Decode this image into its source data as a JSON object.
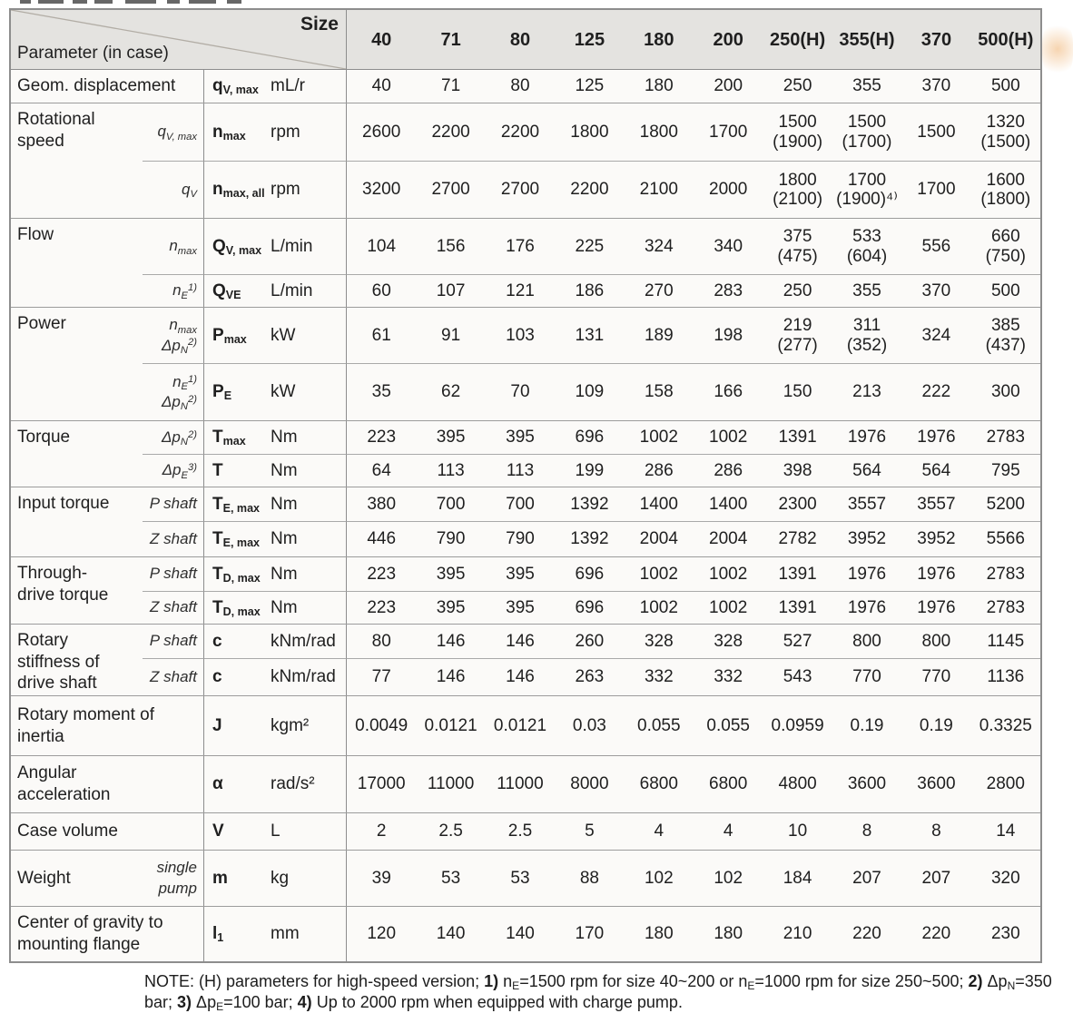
{
  "header": {
    "size_label": "Size",
    "parameter_label": "Parameter (in case)",
    "sizes": [
      "40",
      "71",
      "80",
      "125",
      "180",
      "200",
      "250(H)",
      "355(H)",
      "370",
      "500(H)"
    ]
  },
  "groups": [
    {
      "param_lines": [
        "Geom. displacement"
      ],
      "rows": [
        {
          "cond_lines": [],
          "symbol": [
            {
              "t": "q"
            },
            {
              "t": "V, max",
              "sub": true
            }
          ],
          "unit": "mL/r",
          "values": [
            "40",
            "71",
            "80",
            "125",
            "180",
            "200",
            "250",
            "355",
            "370",
            "500"
          ]
        }
      ]
    },
    {
      "param_lines": [
        "Rotational",
        "speed"
      ],
      "rows": [
        {
          "cond_lines": [
            [
              {
                "t": "q"
              },
              {
                "t": "V, max",
                "sub": true
              }
            ]
          ],
          "symbol": [
            {
              "t": "n"
            },
            {
              "t": "max",
              "sub": true
            }
          ],
          "unit": "rpm",
          "values": [
            "2600",
            "2200",
            "2200",
            "1800",
            "1800",
            "1700",
            "1500\n(1900)",
            "1500\n(1700)",
            "1500",
            "1320\n(1500)"
          ]
        },
        {
          "cond_lines": [
            [
              {
                "t": "q"
              },
              {
                "t": "V",
                "sub": true
              }
            ]
          ],
          "symbol": [
            {
              "t": "n"
            },
            {
              "t": "max, all",
              "sub": true
            }
          ],
          "unit": "rpm",
          "values": [
            "3200",
            "2700",
            "2700",
            "2200",
            "2100",
            "2000",
            "1800\n(2100)",
            "1700\n(1900)⁴⁾",
            "1700",
            "1600\n(1800)"
          ]
        }
      ]
    },
    {
      "param_lines": [
        "Flow"
      ],
      "rows": [
        {
          "cond_lines": [
            [
              {
                "t": "n"
              },
              {
                "t": "max",
                "sub": true
              }
            ]
          ],
          "symbol": [
            {
              "t": "Q"
            },
            {
              "t": "V, max",
              "sub": true
            }
          ],
          "unit": "L/min",
          "values": [
            "104",
            "156",
            "176",
            "225",
            "324",
            "340",
            "375\n(475)",
            "533\n(604)",
            "556",
            "660\n(750)"
          ]
        },
        {
          "cond_lines": [
            [
              {
                "t": "n"
              },
              {
                "t": "E",
                "sub": true
              },
              {
                "t": "1)",
                "sup": true
              }
            ]
          ],
          "symbol": [
            {
              "t": "Q"
            },
            {
              "t": "VE",
              "sub": true
            }
          ],
          "unit": "L/min",
          "values": [
            "60",
            "107",
            "121",
            "186",
            "270",
            "283",
            "250",
            "355",
            "370",
            "500"
          ]
        }
      ]
    },
    {
      "param_lines": [
        "Power"
      ],
      "rows": [
        {
          "cond_lines": [
            [
              {
                "t": "n"
              },
              {
                "t": "max",
                "sub": true
              }
            ],
            [
              {
                "t": "Δp"
              },
              {
                "t": "N",
                "sub": true
              },
              {
                "t": "2)",
                "sup": true
              }
            ]
          ],
          "symbol": [
            {
              "t": "P"
            },
            {
              "t": "max",
              "sub": true
            }
          ],
          "unit": "kW",
          "values": [
            "61",
            "91",
            "103",
            "131",
            "189",
            "198",
            "219\n(277)",
            "311\n(352)",
            "324",
            "385\n(437)"
          ]
        },
        {
          "cond_lines": [
            [
              {
                "t": "n"
              },
              {
                "t": "E",
                "sub": true
              },
              {
                "t": "1)",
                "sup": true
              }
            ],
            [
              {
                "t": "Δp"
              },
              {
                "t": "N",
                "sub": true
              },
              {
                "t": "2)",
                "sup": true
              }
            ]
          ],
          "symbol": [
            {
              "t": "P"
            },
            {
              "t": "E",
              "sub": true
            }
          ],
          "unit": "kW",
          "values": [
            "35",
            "62",
            "70",
            "109",
            "158",
            "166",
            "150",
            "213",
            "222",
            "300"
          ]
        }
      ]
    },
    {
      "param_lines": [
        "Torque"
      ],
      "rows": [
        {
          "cond_lines": [
            [
              {
                "t": "Δp"
              },
              {
                "t": "N",
                "sub": true
              },
              {
                "t": "2)",
                "sup": true
              }
            ]
          ],
          "symbol": [
            {
              "t": "T"
            },
            {
              "t": "max",
              "sub": true
            }
          ],
          "unit": "Nm",
          "values": [
            "223",
            "395",
            "395",
            "696",
            "1002",
            "1002",
            "1391",
            "1976",
            "1976",
            "2783"
          ]
        },
        {
          "cond_lines": [
            [
              {
                "t": "Δp"
              },
              {
                "t": "E",
                "sub": true
              },
              {
                "t": "3)",
                "sup": true
              }
            ]
          ],
          "symbol": [
            {
              "t": "T"
            }
          ],
          "unit": "Nm",
          "values": [
            "64",
            "113",
            "113",
            "199",
            "286",
            "286",
            "398",
            "564",
            "564",
            "795"
          ]
        }
      ]
    },
    {
      "param_lines": [
        "Input torque"
      ],
      "rows": [
        {
          "cond_lines": [
            [
              {
                "t": "P shaft"
              }
            ]
          ],
          "symbol": [
            {
              "t": "T"
            },
            {
              "t": "E, max",
              "sub": true
            }
          ],
          "unit": "Nm",
          "values": [
            "380",
            "700",
            "700",
            "1392",
            "1400",
            "1400",
            "2300",
            "3557",
            "3557",
            "5200"
          ]
        },
        {
          "cond_lines": [
            [
              {
                "t": "Z shaft"
              }
            ]
          ],
          "symbol": [
            {
              "t": "T"
            },
            {
              "t": "E, max",
              "sub": true
            }
          ],
          "unit": "Nm",
          "values": [
            "446",
            "790",
            "790",
            "1392",
            "2004",
            "2004",
            "2782",
            "3952",
            "3952",
            "5566"
          ]
        }
      ]
    },
    {
      "param_lines": [
        "Through-",
        "drive torque"
      ],
      "rows": [
        {
          "cond_lines": [
            [
              {
                "t": "P shaft"
              }
            ]
          ],
          "symbol": [
            {
              "t": "T"
            },
            {
              "t": "D, max",
              "sub": true
            }
          ],
          "unit": "Nm",
          "values": [
            "223",
            "395",
            "395",
            "696",
            "1002",
            "1002",
            "1391",
            "1976",
            "1976",
            "2783"
          ]
        },
        {
          "cond_lines": [
            [
              {
                "t": "Z shaft"
              }
            ]
          ],
          "symbol": [
            {
              "t": "T"
            },
            {
              "t": "D, max",
              "sub": true
            }
          ],
          "unit": "Nm",
          "values": [
            "223",
            "395",
            "395",
            "696",
            "1002",
            "1002",
            "1391",
            "1976",
            "1976",
            "2783"
          ]
        }
      ]
    },
    {
      "param_lines": [
        "Rotary",
        "stiffness of",
        "drive shaft"
      ],
      "rows": [
        {
          "cond_lines": [
            [
              {
                "t": "P shaft"
              }
            ]
          ],
          "symbol": [
            {
              "t": "c"
            }
          ],
          "unit": "kNm/rad",
          "values": [
            "80",
            "146",
            "146",
            "260",
            "328",
            "328",
            "527",
            "800",
            "800",
            "1145"
          ]
        },
        {
          "cond_lines": [
            [
              {
                "t": "Z shaft"
              }
            ]
          ],
          "symbol": [
            {
              "t": "c"
            }
          ],
          "unit": "kNm/rad",
          "values": [
            "77",
            "146",
            "146",
            "263",
            "332",
            "332",
            "543",
            "770",
            "770",
            "1136"
          ]
        }
      ]
    },
    {
      "param_lines": [
        "Rotary moment of",
        "inertia"
      ],
      "rows": [
        {
          "cond_lines": [],
          "symbol": [
            {
              "t": "J"
            }
          ],
          "unit": "kgm²",
          "values": [
            "0.0049",
            "0.0121",
            "0.0121",
            "0.03",
            "0.055",
            "0.055",
            "0.0959",
            "0.19",
            "0.19",
            "0.3325"
          ]
        }
      ]
    },
    {
      "param_lines": [
        "Angular",
        "acceleration"
      ],
      "rows": [
        {
          "cond_lines": [],
          "symbol": [
            {
              "t": "α"
            }
          ],
          "unit": "rad/s²",
          "values": [
            "17000",
            "11000",
            "11000",
            "8000",
            "6800",
            "6800",
            "4800",
            "3600",
            "3600",
            "2800"
          ]
        }
      ]
    },
    {
      "param_lines": [
        "Case volume"
      ],
      "rows": [
        {
          "cond_lines": [],
          "symbol": [
            {
              "t": "V"
            }
          ],
          "unit": "L",
          "values": [
            "2",
            "2.5",
            "2.5",
            "5",
            "4",
            "4",
            "10",
            "8",
            "8",
            "14"
          ]
        }
      ]
    },
    {
      "param_lines": [
        "Weight"
      ],
      "rows": [
        {
          "cond_lines": [
            [
              {
                "t": "single"
              }
            ],
            [
              {
                "t": "pump"
              }
            ]
          ],
          "symbol": [
            {
              "t": "m"
            }
          ],
          "unit": "kg",
          "values": [
            "39",
            "53",
            "53",
            "88",
            "102",
            "102",
            "184",
            "207",
            "207",
            "320"
          ]
        }
      ]
    },
    {
      "param_lines": [
        "Center of gravity to",
        "mounting flange"
      ],
      "rows": [
        {
          "cond_lines": [],
          "symbol": [
            {
              "t": "l"
            },
            {
              "t": "1",
              "sub": true
            }
          ],
          "unit": "mm",
          "values": [
            "120",
            "140",
            "140",
            "170",
            "180",
            "180",
            "210",
            "220",
            "220",
            "230"
          ]
        }
      ]
    }
  ],
  "note_segments": [
    {
      "t": "NOTE: (H) parameters for high-speed version; "
    },
    {
      "t": "1)",
      "b": true
    },
    {
      "t": " n"
    },
    {
      "t": "E",
      "s": true
    },
    {
      "t": "=1500 rpm for size 40~200 or n"
    },
    {
      "t": "E",
      "s": true
    },
    {
      "t": "=1000 rpm for size 250~500; "
    },
    {
      "t": "2)",
      "b": true
    },
    {
      "t": " Δp"
    },
    {
      "t": "N",
      "s": true
    },
    {
      "t": "=350 bar; "
    },
    {
      "t": "3)",
      "b": true
    },
    {
      "t": " Δp"
    },
    {
      "t": "E",
      "s": true
    },
    {
      "t": "=100 bar; "
    },
    {
      "t": "4)",
      "b": true
    },
    {
      "t": " Up to 2000 rpm when equipped with charge pump."
    }
  ],
  "colors": {
    "header_bg": "#e4e3e0",
    "body_bg": "#fbfaf8",
    "border": "#8d8d8d",
    "text": "#1f1f1f",
    "watermark": "#f4ceA8"
  }
}
